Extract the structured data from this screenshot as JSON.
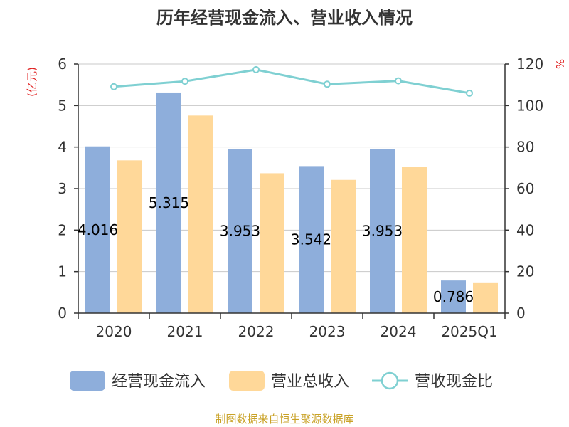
{
  "chart_data": {
    "type": "bar",
    "title": "历年经营现金流入、营业收入情况",
    "categories": [
      "2020",
      "2021",
      "2022",
      "2023",
      "2024",
      "2025Q1"
    ],
    "series": [
      {
        "name": "经营现金流入",
        "kind": "bar",
        "axis": "left",
        "color": "#8eaedb",
        "values": [
          4.016,
          5.315,
          3.953,
          3.542,
          3.953,
          0.786
        ],
        "labels": [
          "4.016",
          "5.315",
          "3.953",
          "3.542",
          "3.953",
          "0.786"
        ]
      },
      {
        "name": "营业总收入",
        "kind": "bar",
        "axis": "left",
        "color": "#ffd899",
        "values": [
          3.68,
          4.76,
          3.37,
          3.21,
          3.53,
          0.74
        ]
      },
      {
        "name": "营收现金比",
        "kind": "line",
        "axis": "right",
        "color": "#7fd0d2",
        "values": [
          109.1,
          111.7,
          117.3,
          110.3,
          111.9,
          106.0
        ]
      }
    ],
    "y_left": {
      "unit": "(亿元)",
      "min": 0,
      "max": 6,
      "ticks": [
        "0",
        "1",
        "2",
        "3",
        "4",
        "5",
        "6"
      ]
    },
    "y_right": {
      "unit": "%",
      "min": 0,
      "max": 120,
      "ticks": [
        "0",
        "20",
        "40",
        "60",
        "80",
        "100",
        "120"
      ]
    },
    "grid": true,
    "legend_position": "bottom",
    "source": "制图数据来自恒生聚源数据库"
  }
}
